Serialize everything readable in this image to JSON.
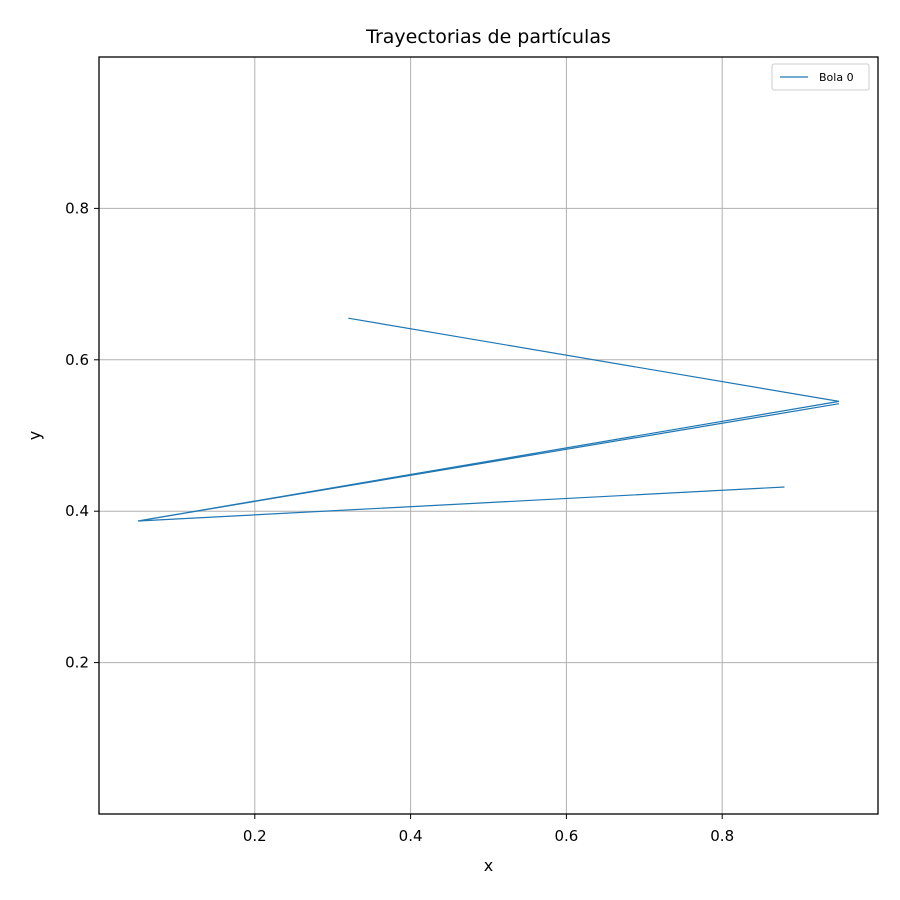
{
  "chart_data": {
    "type": "line",
    "title": "Trayectorias de partículas",
    "xlabel": "x",
    "ylabel": "y",
    "xlim": [
      0.0,
      1.0
    ],
    "ylim": [
      0.0,
      1.0
    ],
    "xticks": [
      0.2,
      0.4,
      0.6,
      0.8
    ],
    "xtick_labels": [
      "0.2",
      "0.4",
      "0.6",
      "0.8"
    ],
    "yticks": [
      0.2,
      0.4,
      0.6,
      0.8
    ],
    "ytick_labels": [
      "0.2",
      "0.4",
      "0.6",
      "0.8"
    ],
    "grid": true,
    "legend_position": "top-right",
    "series": [
      {
        "name": "Bola 0",
        "color": "#1f77b4",
        "x": [
          0.32,
          0.95,
          0.05,
          0.95,
          0.05,
          0.95,
          0.05,
          0.95,
          0.05,
          0.95,
          0.05,
          0.95,
          0.05,
          0.95,
          0.05,
          0.95,
          0.05,
          0.95,
          0.05,
          0.95,
          0.05,
          0.95,
          0.05,
          0.95,
          0.05,
          0.95,
          0.05,
          0.95,
          0.05,
          0.95,
          0.05,
          0.95,
          0.05,
          0.95,
          0.05,
          0.95,
          0.05,
          0.95,
          0.05,
          0.95,
          0.05,
          0.95,
          0.05,
          0.88
        ],
        "y": [
          0.655,
          0.545,
          0.387,
          0.545,
          0.387,
          0.542,
          0.387,
          0.545,
          0.387,
          0.545,
          0.387,
          0.545,
          0.387,
          0.542,
          0.387,
          0.545,
          0.387,
          0.545,
          0.387,
          0.545,
          0.387,
          0.542,
          0.387,
          0.545,
          0.387,
          0.545,
          0.387,
          0.545,
          0.387,
          0.542,
          0.387,
          0.545,
          0.387,
          0.545,
          0.387,
          0.545,
          0.387,
          0.542,
          0.387,
          0.545,
          0.387,
          0.545,
          0.387,
          0.432
        ]
      }
    ]
  }
}
